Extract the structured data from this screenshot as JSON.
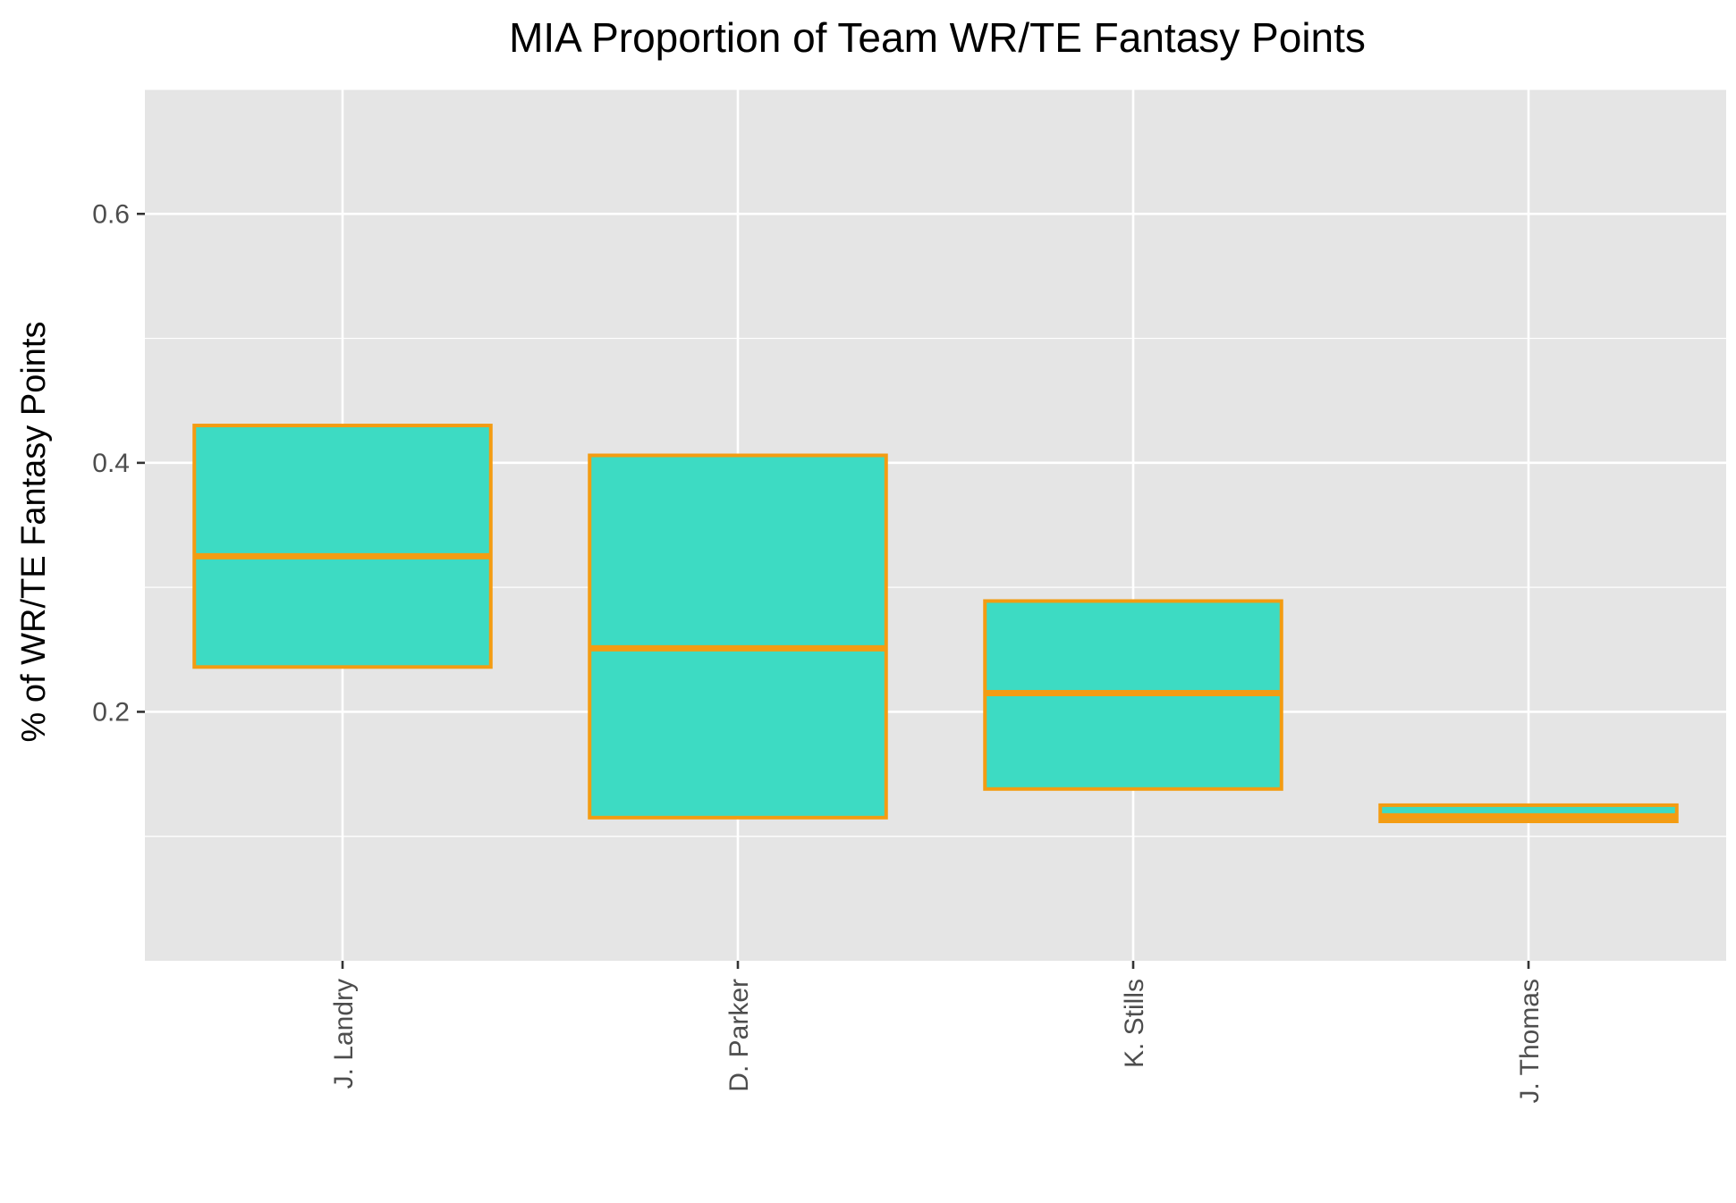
{
  "chart_data": {
    "type": "boxplot",
    "title": "MIA Proportion of Team WR/TE Fantasy Points",
    "xlabel": "",
    "ylabel": "% of WR/TE Fantasy Points",
    "categories": [
      "J. Landry",
      "D. Parker",
      "K. Stills",
      "J. Thomas"
    ],
    "boxes": [
      {
        "category": "J. Landry",
        "q1": 0.236,
        "median": 0.325,
        "q3": 0.43
      },
      {
        "category": "D. Parker",
        "q1": 0.115,
        "median": 0.251,
        "q3": 0.406
      },
      {
        "category": "K. Stills",
        "q1": 0.138,
        "median": 0.215,
        "q3": 0.289
      },
      {
        "category": "J. Thomas",
        "q1": 0.112,
        "median": 0.116,
        "q3": 0.125
      }
    ],
    "ylim": [
      0.0,
      0.7
    ],
    "y_ticks": [
      0.2,
      0.4,
      0.6
    ],
    "y_tick_labels": [
      "0.2",
      "0.4",
      "0.6"
    ],
    "grid": true,
    "legend": "none",
    "colors": {
      "box_fill": "#3ddbc3",
      "box_outline": "#f39c12",
      "panel_background": "#e5e5e5",
      "grid": "#ffffff"
    }
  }
}
